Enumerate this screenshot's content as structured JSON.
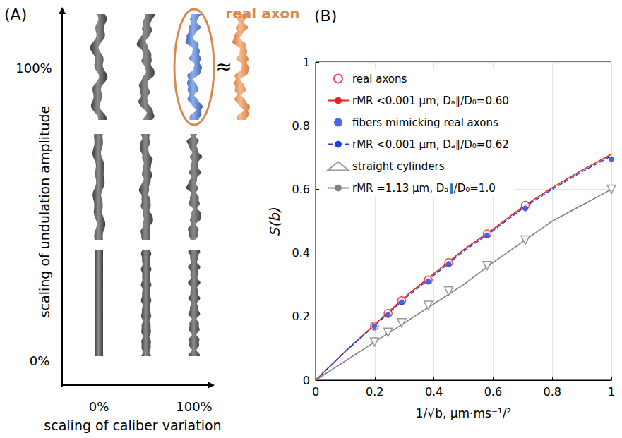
{
  "diagram": {
    "letter": "(A)",
    "highlight_label": "real axon",
    "approx": "≈",
    "y_title": "scaling of undulation amplitude",
    "y_top": "100%",
    "y_bottom": "0%",
    "x_title": "scaling of caliber variation",
    "x_left": "0%",
    "x_right": "100%"
  },
  "chart_data": {
    "type": "scatter",
    "title": "(B)",
    "x_label": "1/√b, μm·ms⁻¹/²",
    "y_label": "S(b)",
    "xlim": [
      0,
      1
    ],
    "xticks": [
      0,
      0.2,
      0.4,
      0.6,
      0.8,
      1
    ],
    "ylim": [
      0,
      1
    ],
    "yticks": [
      0,
      0.2,
      0.4,
      0.6,
      0.8,
      1
    ],
    "grid": true,
    "legend": "top-left",
    "series": [
      {
        "name": "real axons",
        "type": "scatter",
        "marker": "circle_open",
        "color": "#e8231f",
        "x": [
          0.199,
          0.245,
          0.291,
          0.381,
          0.45,
          0.58,
          0.709
        ],
        "values": [
          0.17,
          0.21,
          0.25,
          0.315,
          0.37,
          0.46,
          0.55
        ]
      },
      {
        "name": "rMR <0.001 μm, Dₐ∥/D₀=0.60",
        "type": "line",
        "line_style": "solid",
        "color": "#e8231f",
        "x": [
          0,
          0.1,
          0.2,
          0.3,
          0.4,
          0.5,
          0.6,
          0.7,
          0.8,
          0.9,
          1
        ],
        "values": [
          0,
          0.09,
          0.175,
          0.26,
          0.335,
          0.41,
          0.475,
          0.545,
          0.605,
          0.66,
          0.71
        ]
      },
      {
        "name": "fibers mimicking real axons",
        "type": "scatter",
        "marker": "dot",
        "color": "#1f3fe0",
        "x": [
          0.199,
          0.245,
          0.291,
          0.381,
          0.45,
          0.58,
          0.709,
          1
        ],
        "values": [
          0.17,
          0.205,
          0.245,
          0.31,
          0.365,
          0.455,
          0.54,
          0.695
        ]
      },
      {
        "name": "rMR <0.001 μm, Dₐ∥/D₀=0.62",
        "type": "line",
        "line_style": "dashed",
        "color": "#1f3fe0",
        "x": [
          0,
          0.1,
          0.2,
          0.3,
          0.4,
          0.5,
          0.6,
          0.7,
          0.8,
          0.9,
          1
        ],
        "values": [
          0,
          0.09,
          0.172,
          0.255,
          0.33,
          0.405,
          0.47,
          0.54,
          0.6,
          0.655,
          0.705
        ]
      },
      {
        "name": "straight cylinders",
        "type": "scatter",
        "marker": "triangle_down_open",
        "color": "#808080",
        "x": [
          0.199,
          0.245,
          0.291,
          0.381,
          0.45,
          0.58,
          0.709,
          1
        ],
        "values": [
          0.12,
          0.15,
          0.18,
          0.235,
          0.28,
          0.36,
          0.44,
          0.6
        ]
      },
      {
        "name": "rMR =1.13 μm, Dₐ∥/D₀=1.0",
        "type": "line",
        "line_style": "solid",
        "color": "#808080",
        "x": [
          0,
          0.1,
          0.2,
          0.3,
          0.4,
          0.5,
          0.6,
          0.7,
          0.8,
          0.9,
          1
        ],
        "values": [
          0,
          0.06,
          0.12,
          0.18,
          0.24,
          0.3,
          0.37,
          0.435,
          0.5,
          0.55,
          0.6
        ]
      }
    ]
  }
}
